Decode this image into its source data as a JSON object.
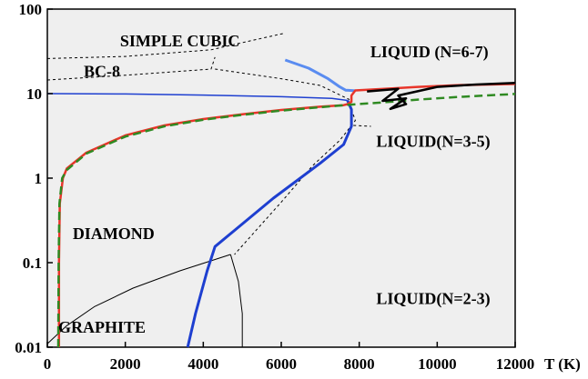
{
  "chart_data": {
    "type": "line",
    "title": "",
    "xlabel": "T (K)",
    "ylabel": "",
    "xlim": [
      0,
      12000
    ],
    "ylim": [
      0.01,
      100
    ],
    "yscale": "log",
    "grid": false,
    "x_ticks": [
      "0",
      "2000",
      "4000",
      "6000",
      "8000",
      "10000",
      "12000"
    ],
    "y_ticks": [
      "100",
      "10",
      "1",
      "0.1",
      "0.01"
    ],
    "background_color": "#efefef",
    "region_labels": [
      {
        "text": "SIMPLE CUBIC",
        "x": 3400,
        "y": 40
      },
      {
        "text": "BC-8",
        "x": 1400,
        "y": 17.5
      },
      {
        "text": "LIQUID (N=6-7)",
        "x": 9800,
        "y": 30
      },
      {
        "text": "LIQUID(N=3-5)",
        "x": 9900,
        "y": 2.6
      },
      {
        "text": "DIAMOND",
        "x": 1700,
        "y": 0.21
      },
      {
        "text": "LIQUID(N=2-3)",
        "x": 9900,
        "y": 0.036
      },
      {
        "text": "GRAPHITE",
        "x": 1400,
        "y": 0.0165
      }
    ],
    "series": [
      {
        "color": "#000000",
        "style": "dashed",
        "width": 1,
        "points": [
          [
            0,
            26
          ],
          [
            2000,
            27.5
          ],
          [
            4200,
            33
          ],
          [
            5200,
            42
          ],
          [
            6100,
            52
          ]
        ]
      },
      {
        "color": "#000000",
        "style": "dashed",
        "width": 1,
        "points": [
          [
            0,
            14.5
          ],
          [
            2000,
            16.5
          ],
          [
            4200,
            19.5
          ],
          [
            4300,
            27
          ]
        ]
      },
      {
        "color": "#000000",
        "style": "dashed",
        "width": 1,
        "points": [
          [
            4300,
            19.5
          ],
          [
            6000,
            15
          ],
          [
            7000,
            12.5
          ],
          [
            7750,
            8.5
          ]
        ]
      },
      {
        "color": "#000000",
        "style": "dashed",
        "width": 1,
        "points": [
          [
            7750,
            7.5
          ],
          [
            7900,
            4.8
          ],
          [
            7500,
            2.8
          ],
          [
            6800,
            1.4
          ],
          [
            6000,
            0.52
          ],
          [
            4800,
            0.125
          ]
        ]
      },
      {
        "color": "#000000",
        "style": "dashed",
        "width": 1,
        "points": [
          [
            7850,
            4.2
          ],
          [
            8300,
            4.1
          ]
        ]
      },
      {
        "color": "#000000",
        "style": "solid",
        "width": 1,
        "points": [
          [
            0,
            0.011
          ],
          [
            500,
            0.018
          ],
          [
            1200,
            0.03
          ],
          [
            2200,
            0.05
          ],
          [
            3400,
            0.08
          ],
          [
            4700,
            0.125
          ]
        ]
      },
      {
        "color": "#000000",
        "style": "solid",
        "width": 1,
        "points": [
          [
            4700,
            0.125
          ],
          [
            4900,
            0.06
          ],
          [
            5000,
            0.025
          ],
          [
            5000,
            0.01
          ]
        ]
      },
      {
        "color": "#1e3fd0",
        "style": "solid",
        "width": 1.5,
        "points": [
          [
            0,
            10
          ],
          [
            2000,
            9.9
          ],
          [
            4000,
            9.6
          ],
          [
            6000,
            9.2
          ],
          [
            7300,
            8.8
          ],
          [
            7700,
            8.3
          ]
        ]
      },
      {
        "color": "#1e3fd0",
        "style": "solid",
        "width": 3,
        "points": [
          [
            3600,
            0.01
          ],
          [
            3800,
            0.025
          ],
          [
            4100,
            0.08
          ],
          [
            4300,
            0.155
          ],
          [
            5800,
            0.58
          ],
          [
            7000,
            1.5
          ],
          [
            7600,
            2.5
          ],
          [
            7800,
            4.1
          ],
          [
            7800,
            6.5
          ],
          [
            7700,
            8.3
          ]
        ]
      },
      {
        "color": "#5a8cf0",
        "style": "solid",
        "width": 3,
        "points": [
          [
            6100,
            25
          ],
          [
            6700,
            20
          ],
          [
            7200,
            15
          ],
          [
            7500,
            12
          ],
          [
            7650,
            11
          ],
          [
            7900,
            10.8
          ]
        ]
      },
      {
        "color": "#e8352a",
        "style": "solid",
        "width": 2.5,
        "points": [
          [
            300,
            0.01
          ],
          [
            300,
            0.1
          ],
          [
            320,
            0.5
          ],
          [
            400,
            1
          ],
          [
            500,
            1.3
          ],
          [
            1000,
            2
          ],
          [
            2000,
            3.2
          ],
          [
            3000,
            4.2
          ],
          [
            4000,
            5
          ],
          [
            5000,
            5.7
          ],
          [
            6000,
            6.4
          ],
          [
            7000,
            7
          ],
          [
            7600,
            7.3
          ],
          [
            7700,
            7.5
          ],
          [
            7800,
            8
          ],
          [
            7800,
            9.5
          ],
          [
            7900,
            10.9
          ],
          [
            8800,
            11.5
          ],
          [
            9500,
            12
          ],
          [
            10500,
            12.6
          ],
          [
            12000,
            13
          ]
        ]
      },
      {
        "color": "#2f8a22",
        "style": "dashed",
        "width": 2.5,
        "points": [
          [
            280,
            0.01
          ],
          [
            290,
            0.1
          ],
          [
            310,
            0.5
          ],
          [
            380,
            1
          ],
          [
            500,
            1.25
          ],
          [
            1000,
            1.95
          ],
          [
            2000,
            3.1
          ],
          [
            3000,
            4.1
          ],
          [
            4000,
            4.9
          ],
          [
            5000,
            5.6
          ],
          [
            6000,
            6.3
          ],
          [
            7000,
            6.9
          ],
          [
            7750,
            7.4
          ],
          [
            8500,
            7.8
          ],
          [
            9500,
            8.5
          ],
          [
            10500,
            9.1
          ],
          [
            12000,
            9.9
          ]
        ]
      },
      {
        "color": "#000000",
        "style": "solid",
        "width": 2.5,
        "points": [
          [
            8200,
            10.6
          ],
          [
            9000,
            11.4
          ],
          [
            8600,
            8.2
          ],
          [
            9200,
            8.8
          ],
          [
            8800,
            6.6
          ],
          [
            9200,
            7.5
          ],
          [
            9000,
            9.5
          ],
          [
            10000,
            12
          ],
          [
            11000,
            12.8
          ],
          [
            12000,
            13.4
          ]
        ]
      }
    ]
  }
}
